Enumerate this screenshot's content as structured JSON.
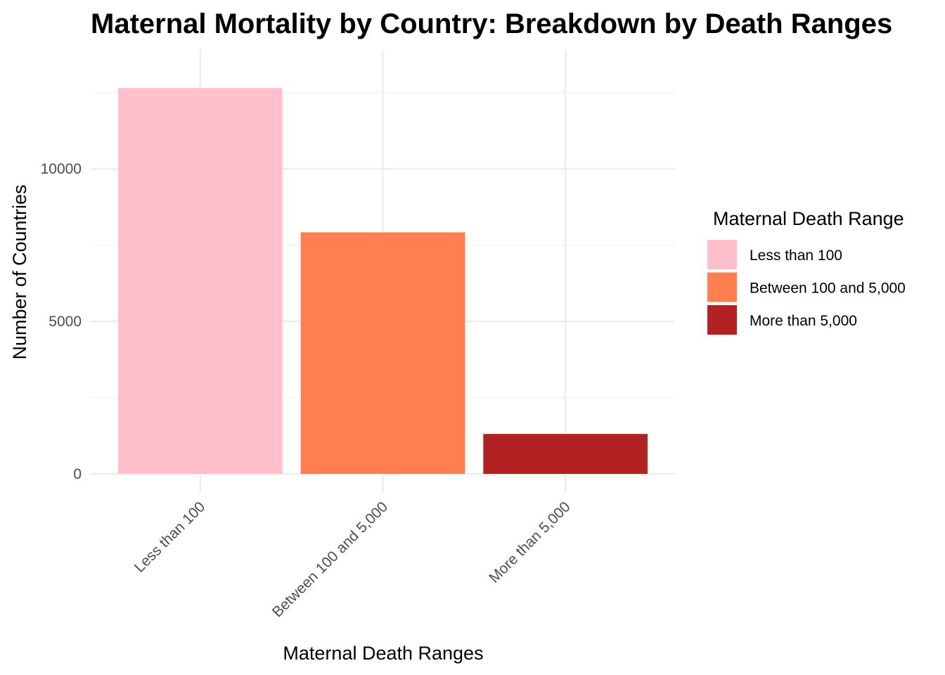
{
  "chart_data": {
    "type": "bar",
    "title": "Maternal Mortality by Country: Breakdown by Death Ranges",
    "xlabel": "Maternal Death Ranges",
    "ylabel": "Number of Countries",
    "categories": [
      "Less than 100",
      "Between 100 and 5,000",
      "More than 5,000"
    ],
    "values": [
      12650,
      7920,
      1310
    ],
    "colors": [
      "#ffc0cb",
      "#ff7f50",
      "#b22222"
    ],
    "ylim": [
      -600,
      13900
    ],
    "yticks": [
      0,
      5000,
      10000
    ],
    "yticks_minor": [
      2500,
      7500,
      12500
    ],
    "grid": true,
    "legend": {
      "title": "Maternal Death Range",
      "position": "right",
      "entries": [
        "Less than 100",
        "Between 100 and 5,000",
        "More than 5,000"
      ]
    }
  }
}
